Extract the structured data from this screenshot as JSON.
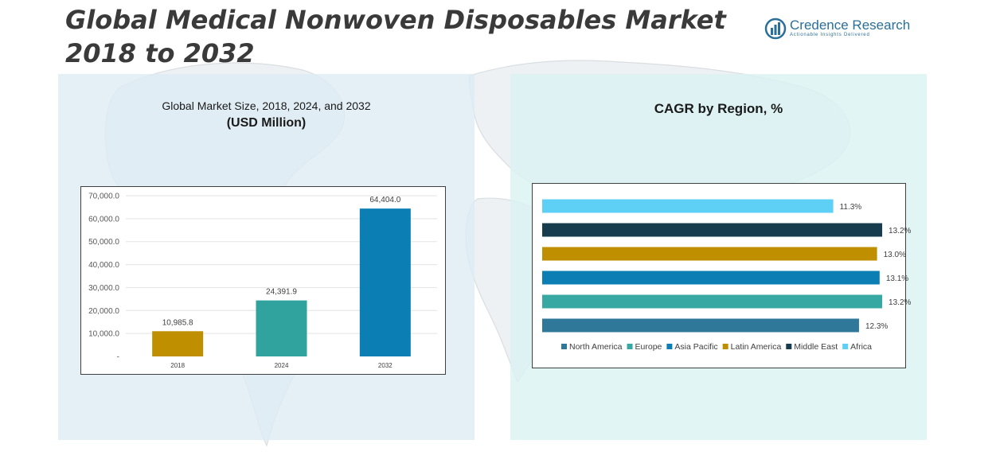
{
  "header": {
    "title_line1": "Global Medical Nonwoven Disposables Market",
    "title_line2": "2018 to 2032"
  },
  "logo": {
    "name": "Credence Research",
    "tagline": "Actionable Insights Delivered",
    "icon": "bar-chart-logo-icon"
  },
  "left_panel": {
    "title_line1": "Global Market Size, 2018, 2024, and 2032",
    "title_line2": "(USD Million)"
  },
  "right_panel": {
    "title": "CAGR by Region, %"
  },
  "chart_data": [
    {
      "type": "bar",
      "categories": [
        "2018",
        "2024",
        "2032"
      ],
      "values": [
        10985.8,
        24391.9,
        64404.0
      ],
      "value_labels": [
        "10,985.8",
        "24,391.9",
        "64,404.0"
      ],
      "bar_colors": [
        "#bf8f00",
        "#31a39e",
        "#0b7fb3"
      ],
      "ylim": [
        0,
        70000
      ],
      "yticks": [
        0,
        10000,
        20000,
        30000,
        40000,
        50000,
        60000,
        70000
      ],
      "ytick_labels": [
        "-",
        "10,000.0",
        "20,000.0",
        "30,000.0",
        "40,000.0",
        "50,000.0",
        "60,000.0",
        "70,000.0"
      ],
      "grid": true,
      "legend": false
    },
    {
      "type": "bar",
      "orientation": "horizontal",
      "categories": [
        "North America",
        "Europe",
        "Asia Pacific",
        "Latin America",
        "Middle East",
        "Africa"
      ],
      "values": [
        12.3,
        13.2,
        13.1,
        13.0,
        13.2,
        11.3
      ],
      "value_labels": [
        "12.3%",
        "13.2%",
        "13.1%",
        "13.0%",
        "13.2%",
        "11.3%"
      ],
      "colors": [
        "#2f7899",
        "#37a8a2",
        "#0b7fb3",
        "#bf8f00",
        "#173c4d",
        "#5fd0f5"
      ],
      "order_top_to_bottom": [
        "Africa",
        "Middle East",
        "Latin America",
        "Asia Pacific",
        "Europe",
        "North America"
      ],
      "xlim": [
        0,
        13.6
      ],
      "legend": "bottom",
      "grid": false
    }
  ]
}
